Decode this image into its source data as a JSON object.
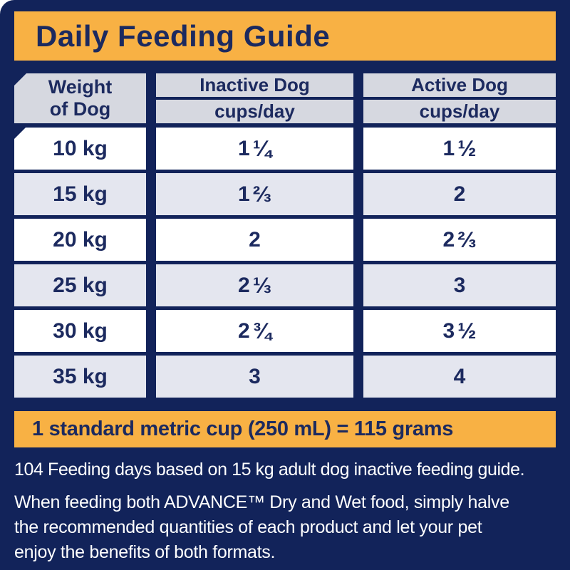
{
  "title": "Daily Feeding Guide",
  "colors": {
    "panel_navy": "#12235A",
    "text_navy": "#1C2A5F",
    "banner_yellow": "#F8B144",
    "header_gray": "#D6D8E0",
    "row_alt_lavender": "#E4E6EF",
    "row_white": "#FFFFFF",
    "footer_text": "#FFFFFF"
  },
  "table": {
    "weight_header": {
      "line1": "Weight",
      "line2": "of Dog"
    },
    "inactive_header": {
      "label": "Inactive Dog",
      "unit": "cups/day"
    },
    "active_header": {
      "label": "Active Dog",
      "unit": "cups/day"
    },
    "rows": [
      {
        "weight": "10 kg",
        "inactive": {
          "whole": "1",
          "frac": "¼"
        },
        "active": {
          "whole": "1",
          "frac": "½"
        }
      },
      {
        "weight": "15 kg",
        "inactive": {
          "whole": "1",
          "frac": "⅔"
        },
        "active": {
          "whole": "2",
          "frac": ""
        }
      },
      {
        "weight": "20 kg",
        "inactive": {
          "whole": "2",
          "frac": ""
        },
        "active": {
          "whole": "2",
          "frac": "⅔"
        }
      },
      {
        "weight": "25 kg",
        "inactive": {
          "whole": "2",
          "frac": "⅓"
        },
        "active": {
          "whole": "3",
          "frac": ""
        }
      },
      {
        "weight": "30 kg",
        "inactive": {
          "whole": "2",
          "frac": "¾"
        },
        "active": {
          "whole": "3",
          "frac": "½"
        }
      },
      {
        "weight": "35 kg",
        "inactive": {
          "whole": "3",
          "frac": ""
        },
        "active": {
          "whole": "4",
          "frac": ""
        }
      }
    ]
  },
  "cup_note": "1 standard metric cup (250 mL) = 115 grams",
  "footer": {
    "line1": "104 Feeding days based on 15 kg adult dog inactive feeding guide.",
    "note_lines": [
      "When feeding both ADVANCE™ Dry and Wet food, simply halve",
      "the recommended quantities of each product and let your pet",
      "enjoy the benefits of both formats."
    ]
  }
}
